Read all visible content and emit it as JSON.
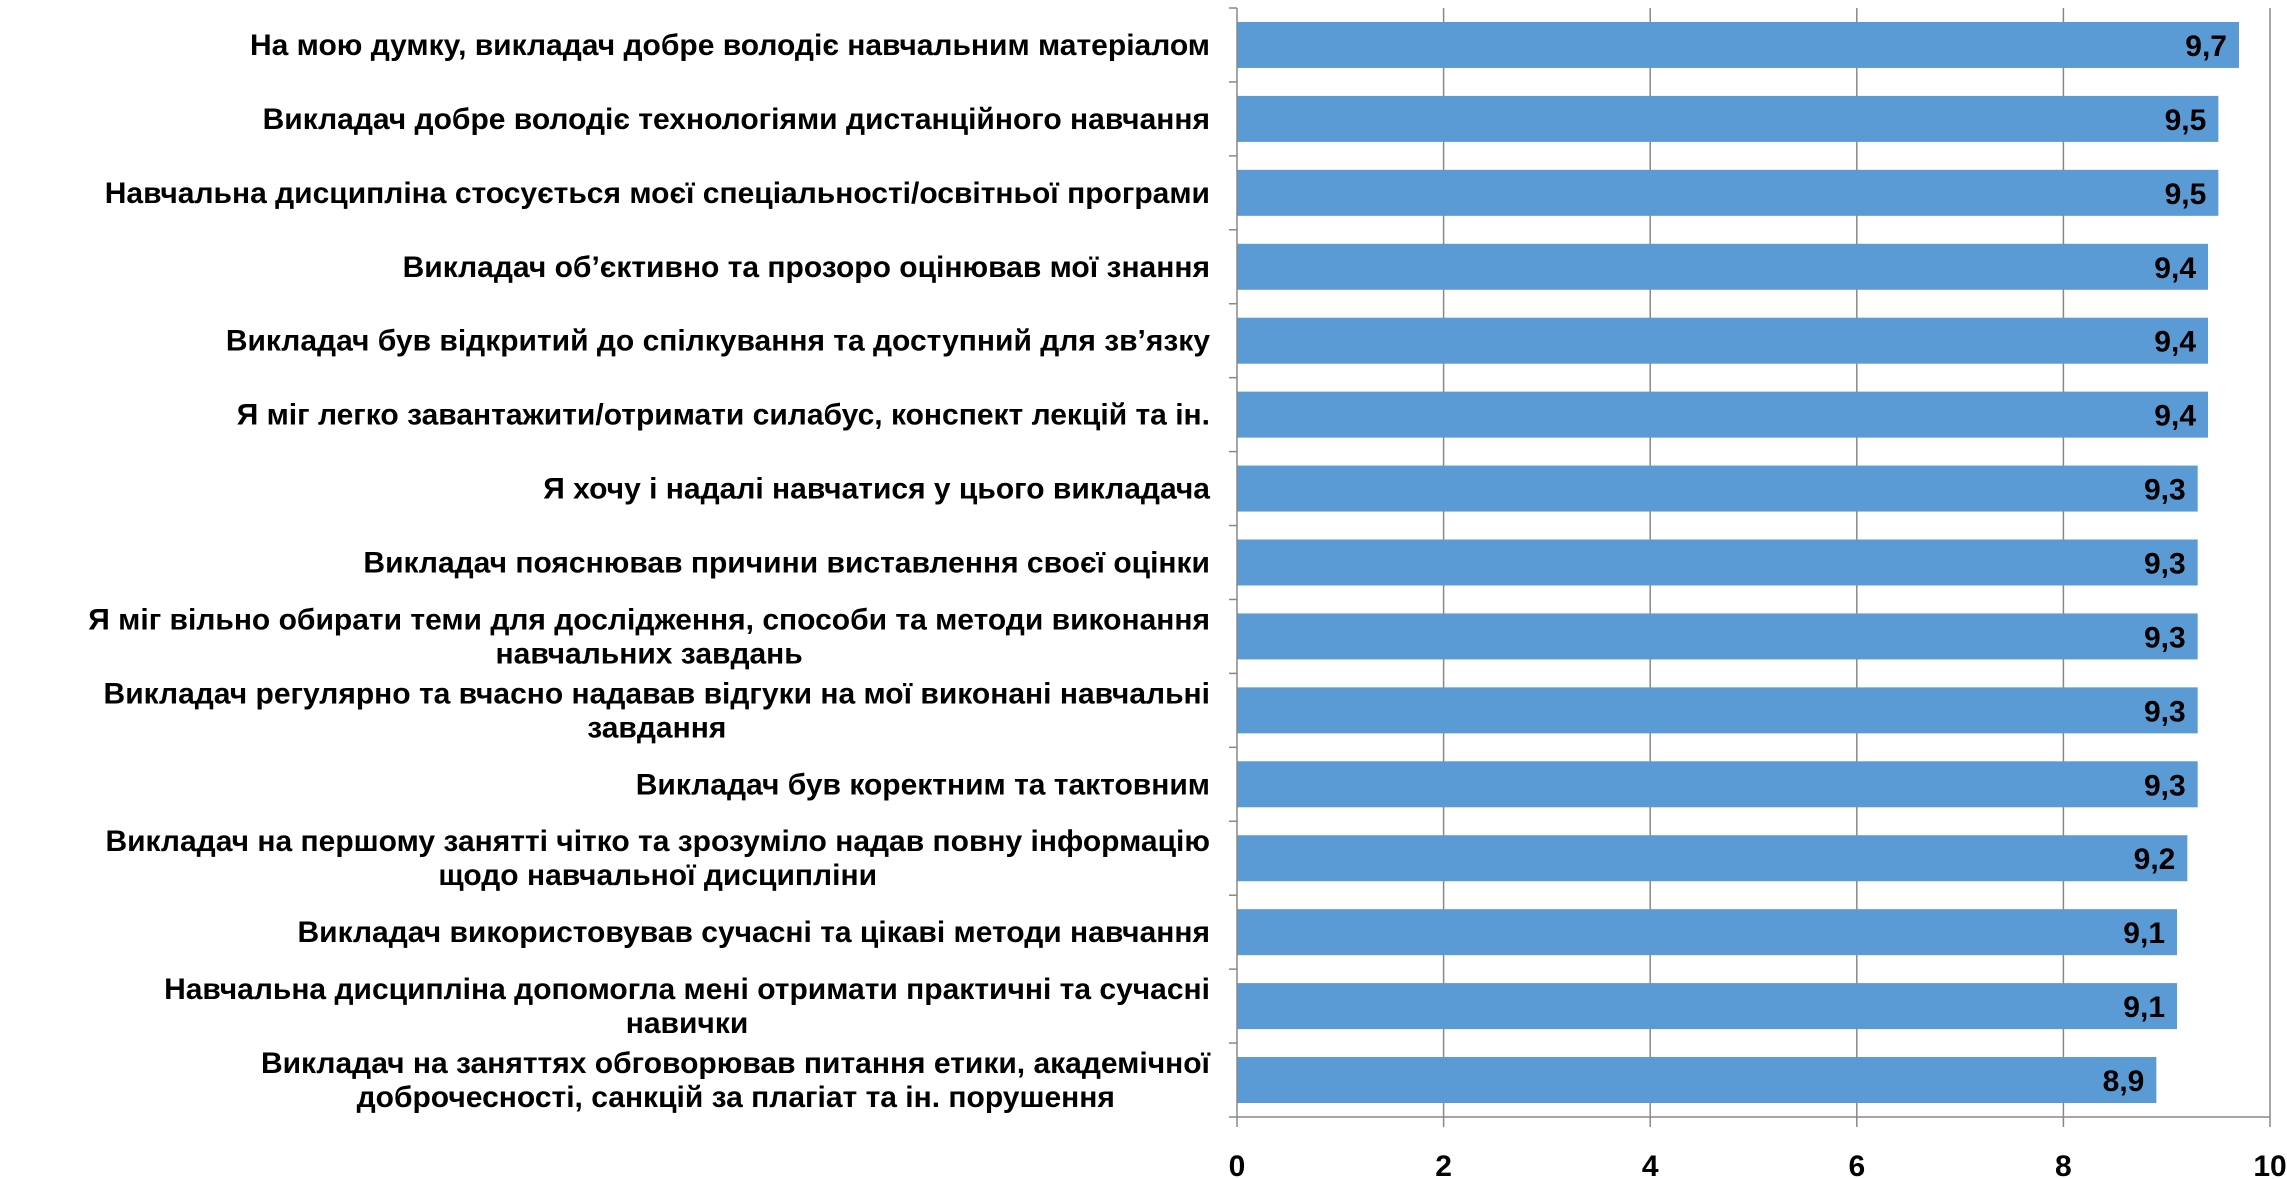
{
  "chart_data": {
    "type": "bar",
    "orientation": "horizontal",
    "categories": [
      [
        "На мою думку, викладач добре володіє навчальним матеріалом"
      ],
      [
        "Викладач добре володіє технологіями дистанційного навчання"
      ],
      [
        "Навчальна дисципліна стосується моєї спеціальності/освітньої програми"
      ],
      [
        "Викладач об’єктивно та прозоро оцінював мої знання"
      ],
      [
        "Викладач був відкритий до спілкування та доступний для зв’язку"
      ],
      [
        "Я міг легко завантажити/отримати силабус, конспект лекцій та ін."
      ],
      [
        "Я хочу і надалі навчатися у цього викладача"
      ],
      [
        "Викладач пояснював причини виставлення своєї оцінки"
      ],
      [
        "Я міг вільно обирати теми для дослідження, способи та методи виконання",
        "навчальних завдань"
      ],
      [
        "Викладач регулярно та вчасно надавав відгуки на мої виконані навчальні",
        "завдання"
      ],
      [
        "Викладач був коректним та тактовним"
      ],
      [
        "Викладач на першому занятті чітко та зрозуміло надав повну інформацію",
        "щодо навчальної дисципліни"
      ],
      [
        "Викладач використовував сучасні та цікаві методи навчання"
      ],
      [
        "Навчальна дисципліна допомогла мені отримати практичні та сучасні",
        "навички"
      ],
      [
        "Викладач на заняттях обговорював питання етики, академічної",
        "доброчесності, санкцій за плагіат та ін. порушення"
      ]
    ],
    "values": [
      9.7,
      9.5,
      9.5,
      9.4,
      9.4,
      9.4,
      9.3,
      9.3,
      9.3,
      9.3,
      9.3,
      9.2,
      9.1,
      9.1,
      8.9
    ],
    "value_labels": [
      "9,7",
      "9,5",
      "9,5",
      "9,4",
      "9,4",
      "9,4",
      "9,3",
      "9,3",
      "9,3",
      "9,3",
      "9,3",
      "9,2",
      "9,1",
      "9,1",
      "8,9"
    ],
    "xlim": [
      0,
      10
    ],
    "xticks": [
      0,
      2,
      4,
      6,
      8,
      10
    ],
    "xtick_labels": [
      "0",
      "2",
      "4",
      "6",
      "8",
      "10"
    ],
    "grid": "vertical",
    "legend": "none",
    "colors": {
      "bar": "#5b9bd5",
      "grid": "#888888",
      "axis": "#888888",
      "text": "#000000"
    }
  }
}
